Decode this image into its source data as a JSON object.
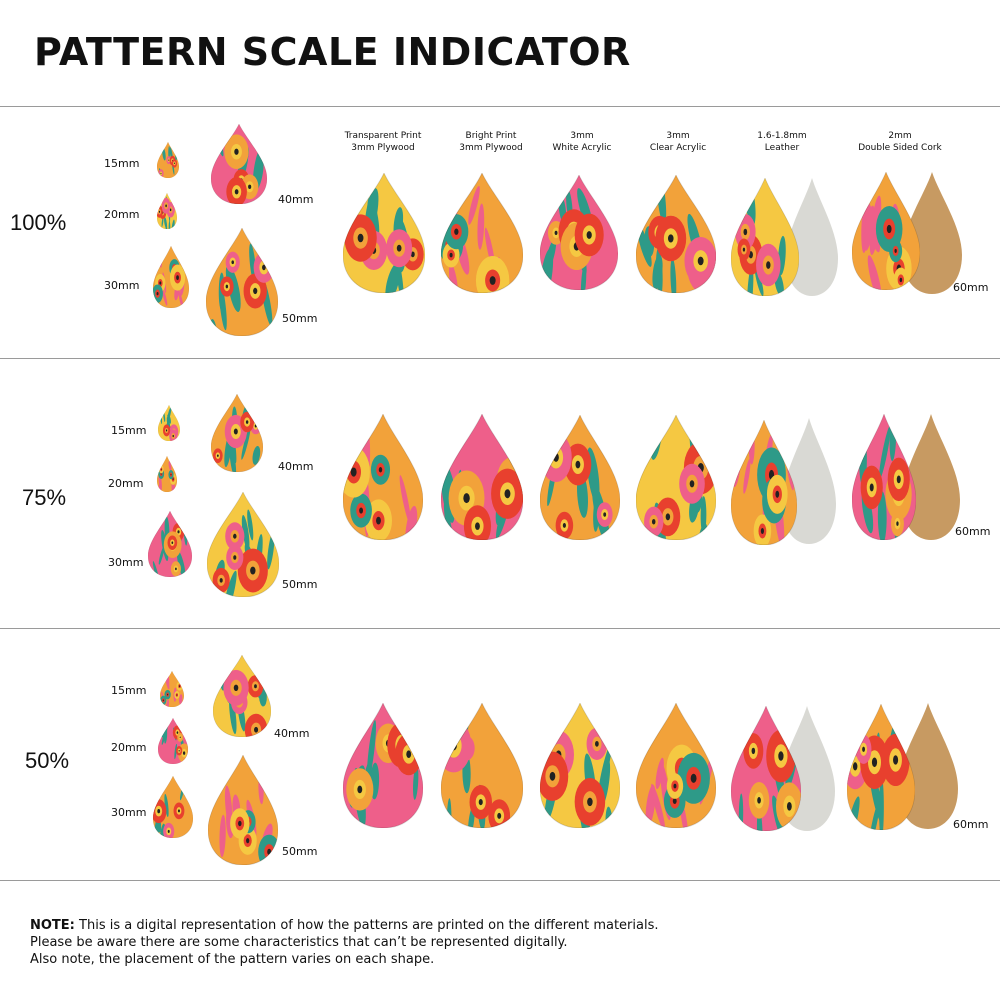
{
  "title": "PATTERN SCALE INDICATOR",
  "columns": [
    {
      "line1": "Transparent Print",
      "line2": "3mm Plywood"
    },
    {
      "line1": "Bright Print",
      "line2": "3mm Plywood"
    },
    {
      "line1": "3mm",
      "line2": "White Acrylic"
    },
    {
      "line1": "3mm",
      "line2": "Clear Acrylic"
    },
    {
      "line1": "1.6-1.8mm",
      "line2": "Leather"
    },
    {
      "line1": "2mm",
      "line2": "Double Sided Cork"
    }
  ],
  "rows": [
    {
      "scale": "100%",
      "size_15": "15mm",
      "size_20": "20mm",
      "size_30": "30mm",
      "size_40": "40mm",
      "size_50": "50mm",
      "size_60": "60mm"
    },
    {
      "scale": "75%",
      "size_15": "15mm",
      "size_20": "20mm",
      "size_30": "30mm",
      "size_40": "40mm",
      "size_50": "50mm",
      "size_60": "60mm"
    },
    {
      "scale": "50%",
      "size_15": "15mm",
      "size_20": "20mm",
      "size_30": "30mm",
      "size_40": "40mm",
      "size_50": "50mm",
      "size_60": "60mm"
    }
  ],
  "note": {
    "label": "NOTE:",
    "line1": " This is a digital representation of how the patterns are printed on the different materials.",
    "line2": "Please be aware there are some characteristics that can’t be represented digitally.",
    "line3": "Also note, the placement of the pattern varies on each shape."
  },
  "colors": {
    "orange": "#f2a23a",
    "yellow": "#f5c842",
    "pink": "#ee5f8a",
    "red": "#e8402e",
    "teal": "#2e9a88",
    "leather": "#d9d9d4",
    "cork": "#c79a62"
  }
}
